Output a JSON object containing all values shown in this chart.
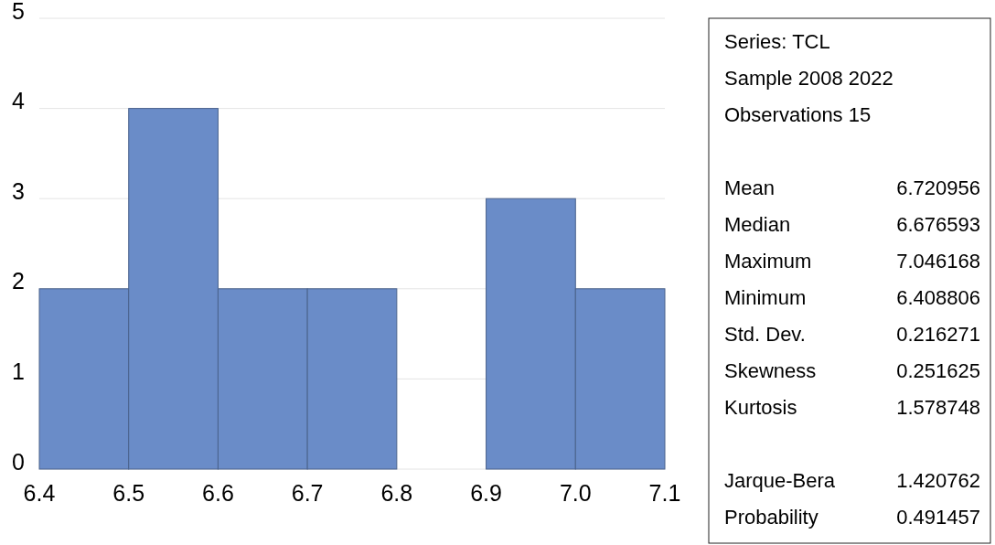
{
  "chart_data": {
    "type": "histogram",
    "bins": [
      6.4,
      6.5,
      6.6,
      6.7,
      6.8,
      6.9,
      7.0,
      7.1
    ],
    "values": [
      2,
      4,
      2,
      2,
      0,
      3,
      2
    ],
    "color": "#6a8cc8",
    "xlim": [
      6.4,
      7.1
    ],
    "xticks": [
      {
        "value": 6.4,
        "label": "6.4"
      },
      {
        "value": 6.5,
        "label": "6.5"
      },
      {
        "value": 6.6,
        "label": "6.6"
      },
      {
        "value": 6.7,
        "label": "6.7"
      },
      {
        "value": 6.8,
        "label": "6.8"
      },
      {
        "value": 6.9,
        "label": "6.9"
      },
      {
        "value": 7.0,
        "label": "7.0"
      },
      {
        "value": 7.1,
        "label": "7.1"
      }
    ],
    "ylim": [
      0,
      5
    ],
    "yticks": [
      0,
      1,
      2,
      3,
      4,
      5
    ],
    "grid": "y",
    "annotations": [
      "Series: TCL",
      "Sample 2008 2022",
      "Observations 15",
      "Mean\t6.720956",
      "Median\t6.676593",
      "Maximum\t7.046168",
      "Minimum\t6.408806",
      "Std. Dev.\t0.216271",
      "Skewness\t0.251625",
      "Kurtosis\t1.578748",
      "Jarque-Bera\t1.420762",
      "Probability\t0.491457"
    ]
  }
}
